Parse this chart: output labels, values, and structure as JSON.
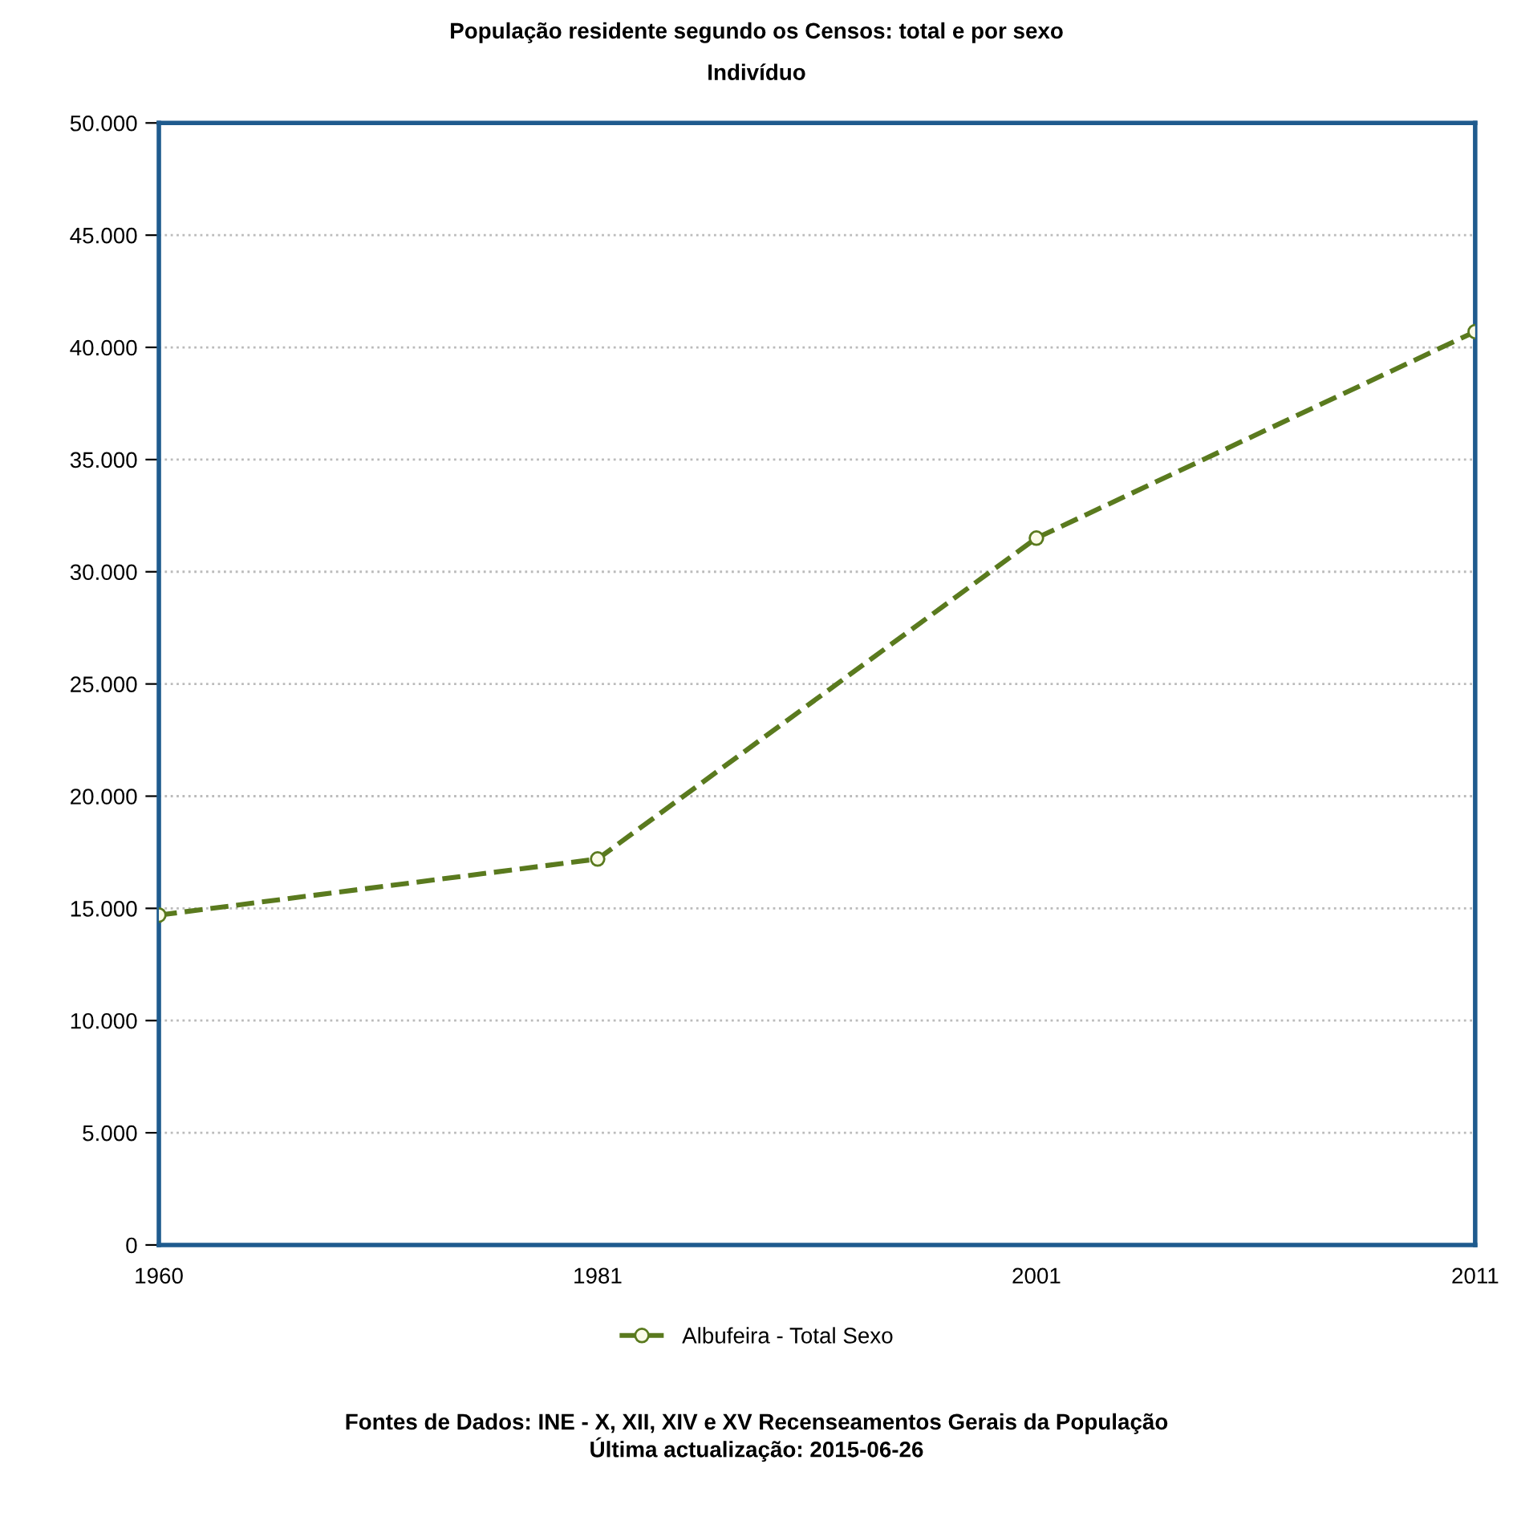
{
  "chart_data": {
    "type": "line",
    "title": "População residente segundo os Censos: total e por sexo",
    "subtitle": "Indivíduo",
    "categories": [
      "1960",
      "1981",
      "2001",
      "2011"
    ],
    "series": [
      {
        "name": "Albufeira - Total Sexo",
        "color": "#5a7a1e",
        "values": [
          14700,
          17200,
          31500,
          40700
        ]
      }
    ],
    "ylim": [
      0,
      50000
    ],
    "yticks": [
      {
        "value": 0,
        "label": "0"
      },
      {
        "value": 5000,
        "label": "5.000"
      },
      {
        "value": 10000,
        "label": "10.000"
      },
      {
        "value": 15000,
        "label": "15.000"
      },
      {
        "value": 20000,
        "label": "20.000"
      },
      {
        "value": 25000,
        "label": "25.000"
      },
      {
        "value": 30000,
        "label": "30.000"
      },
      {
        "value": 35000,
        "label": "35.000"
      },
      {
        "value": 40000,
        "label": "40.000"
      },
      {
        "value": 45000,
        "label": "45.000"
      },
      {
        "value": 50000,
        "label": "50.000"
      }
    ],
    "grid": "y",
    "legend": "bottom",
    "marker": "circle",
    "line_style": "dashed",
    "annotations": [
      "Fontes de Dados: INE - X, XII, XIV e XV Recenseamentos Gerais da População",
      "Última actualização: 2015-06-26"
    ]
  }
}
